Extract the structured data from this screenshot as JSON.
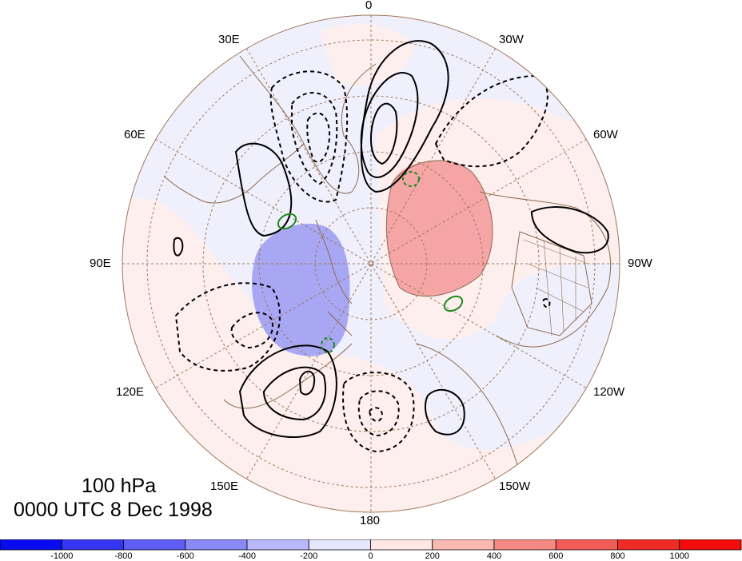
{
  "map": {
    "level": "100 hPa",
    "datetime": "0000 UTC 8 Dec 1998",
    "projection": "north-polar-stereographic",
    "longitude_labels": [
      "0",
      "30W",
      "60W",
      "90W",
      "120W",
      "150W",
      "180",
      "150E",
      "120E",
      "90E",
      "60E",
      "30E"
    ],
    "shaded_anomalies": [
      {
        "region": "Greenland / Canadian Arctic",
        "sign": "positive",
        "level": 400
      },
      {
        "region": "East Siberian Sea / Kara",
        "sign": "negative",
        "level": -400
      }
    ],
    "contours": {
      "positive_style": "solid black",
      "negative_style": "dashed black",
      "secondary_positive": "solid green",
      "secondary_negative": "dashed green"
    }
  },
  "colorbar": {
    "labels": [
      "-1000",
      "-800",
      "-600",
      "-400",
      "-200",
      "0",
      "200",
      "400",
      "600",
      "800",
      "1000"
    ],
    "colors": [
      "#0b0bf0",
      "#3535f2",
      "#5e5ef4",
      "#8a8af7",
      "#b8b8fa",
      "#e6e6fd",
      "#fde8e5",
      "#f9b9b3",
      "#f58a84",
      "#f25c56",
      "#ef2b26",
      "#f40b0b"
    ]
  },
  "colors": {
    "coast": "#8b6b50",
    "grid": "#a0785a",
    "positive_shade": "#f5a0a0",
    "negative_shade": "#9a9af0"
  }
}
